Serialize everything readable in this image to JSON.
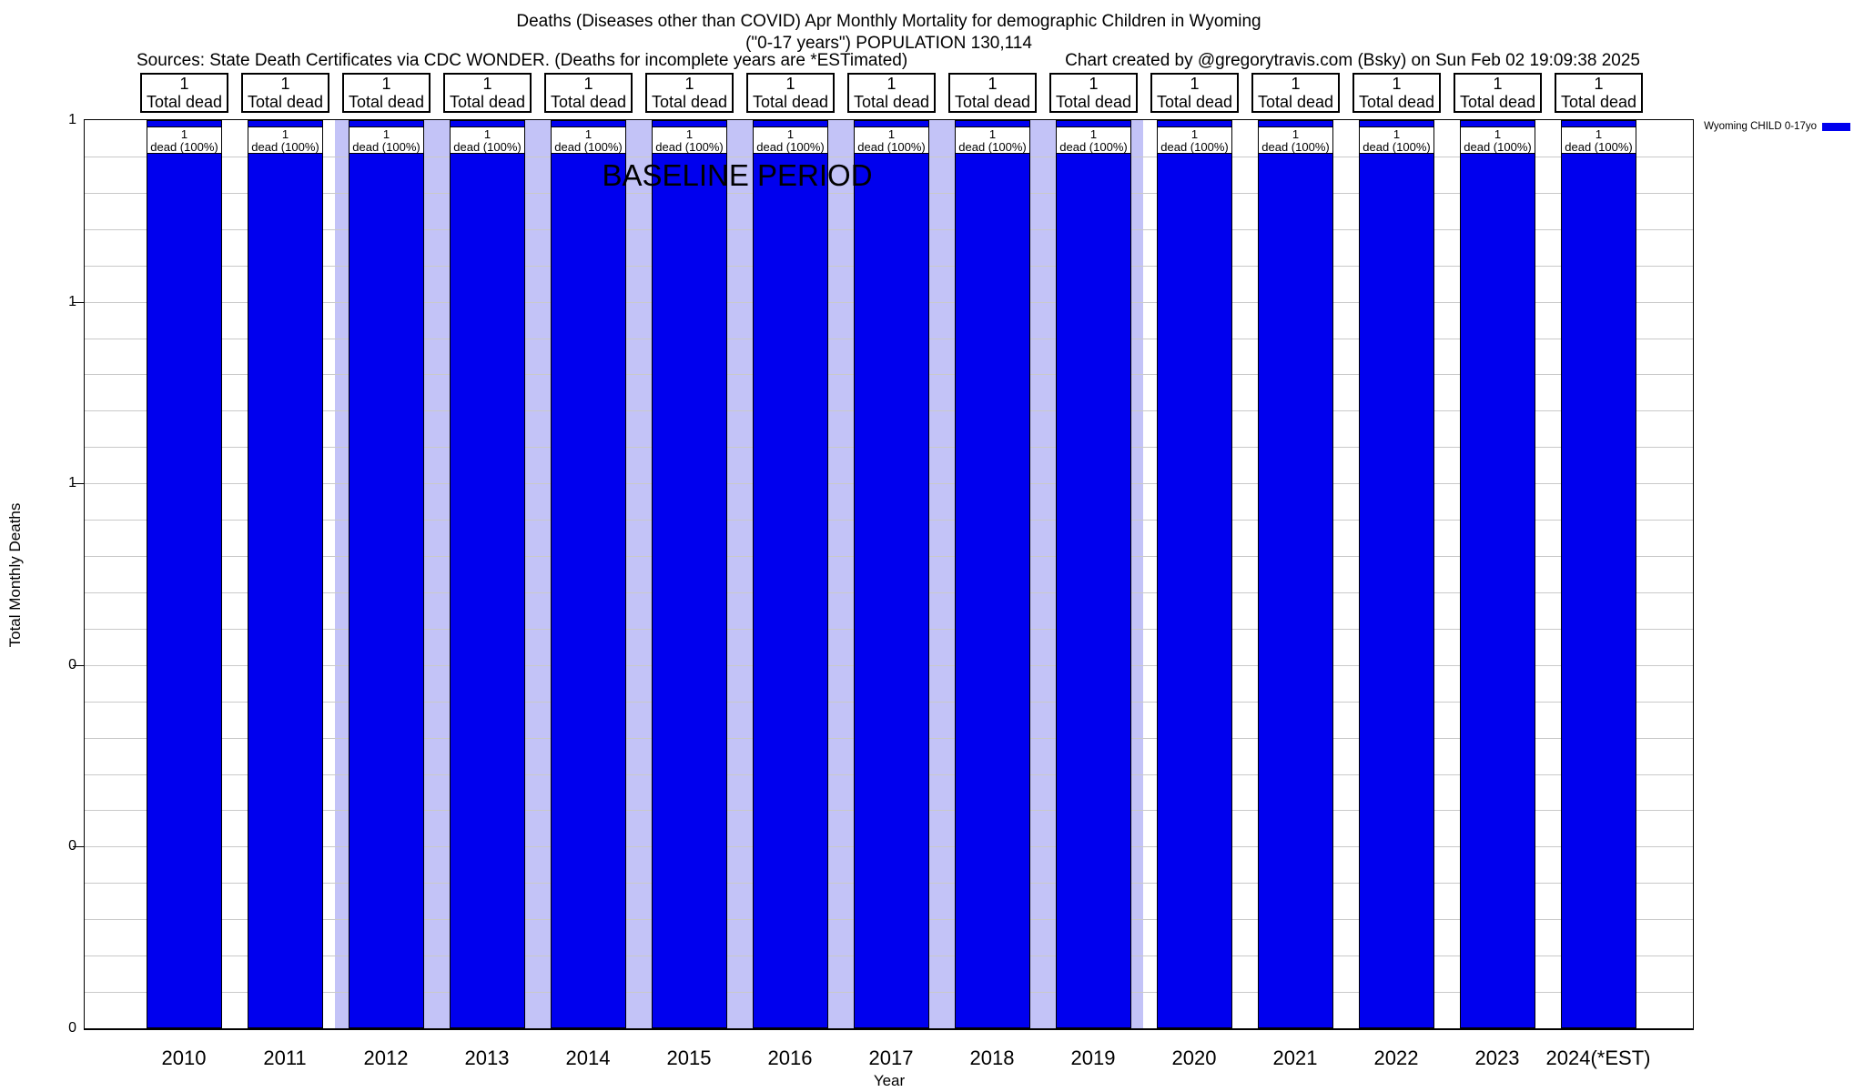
{
  "header": {
    "title_line1": "Deaths (Diseases other than COVID) Apr Monthly Mortality for demographic Children in Wyoming",
    "title_line2": "(\"0-17 years\") POPULATION 130,114",
    "source_note": "Sources: State Death Certificates via CDC WONDER. (Deaths for incomplete years are *ESTimated)",
    "credit_note": "Chart created by @gregorytravis.com (Bsky) on Sun Feb 02 19:09:38 2025"
  },
  "legend": {
    "label": "Wyoming CHILD 0-17yo",
    "swatch_color": "#0000ee"
  },
  "axes": {
    "y_title": "Total Monthly Deaths",
    "x_title": "Year",
    "y_tick_labels": [
      "1",
      "1",
      "1",
      "0",
      "0",
      "0"
    ]
  },
  "baseline": {
    "label": "BASELINE PERIOD"
  },
  "chart_data": {
    "type": "bar",
    "title": "Deaths (Diseases other than COVID) Apr Monthly Mortality for demographic Children in Wyoming",
    "subtitle": "(\"0-17 years\") POPULATION 130,114",
    "categories": [
      "2010",
      "2011",
      "2012",
      "2013",
      "2014",
      "2015",
      "2016",
      "2017",
      "2018",
      "2019",
      "2020",
      "2021",
      "2022",
      "2023",
      "2024(*EST)"
    ],
    "series": [
      {
        "name": "Wyoming CHILD 0-17yo",
        "values": [
          1,
          1,
          1,
          1,
          1,
          1,
          1,
          1,
          1,
          1,
          1,
          1,
          1,
          1,
          1
        ]
      }
    ],
    "bar_annotations": {
      "value_line": "1",
      "caption_line": "dead (100%)"
    },
    "column_header_boxes": {
      "value_line": "1",
      "caption_line": "Total dead"
    },
    "xlabel": "Year",
    "ylabel": "Total Monthly Deaths",
    "ylim": [
      0,
      1
    ],
    "y_tick_labels": [
      "1",
      "1",
      "1",
      "0",
      "0",
      "0"
    ],
    "grid": "horizontal gridlines, 5 minor divisions per major tick",
    "legend_position": "top-right outside plot",
    "baseline_period": {
      "label": "BASELINE PERIOD",
      "from": "2012",
      "to": "2019"
    },
    "colors": {
      "bar": "#0000ee",
      "baseline_band": "#c3c3f7",
      "gridline": "#c9c9c9"
    }
  }
}
